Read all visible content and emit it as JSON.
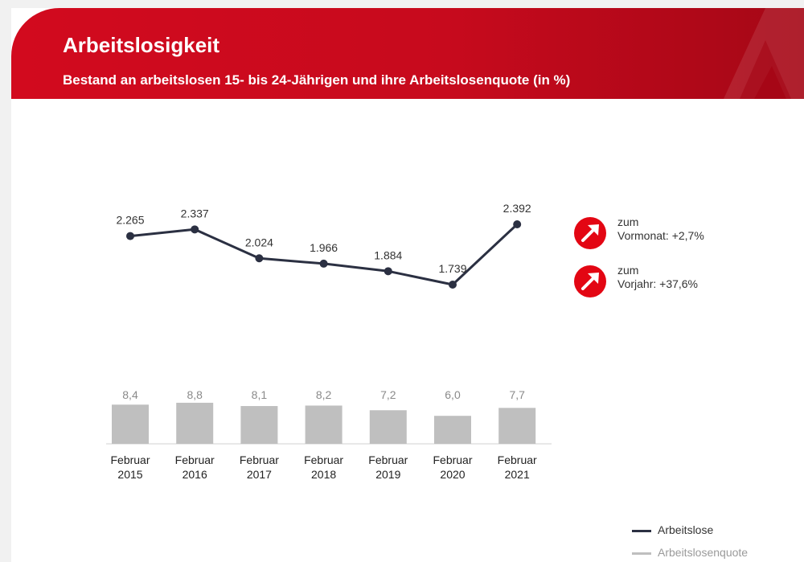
{
  "header": {
    "title": "Arbeitslosigkeit",
    "subtitle": "Bestand an arbeitslosen 15- bis 24-Jährigen und ihre Arbeitslosenquote (in %)"
  },
  "colors": {
    "brand_red": "#e30613",
    "line": "#2b3042",
    "bar": "#bfbfbf",
    "quote_label": "#8a8a8a"
  },
  "callouts": [
    {
      "icon": "arrow-up-right-icon",
      "line1": "zum",
      "line2": "Vormonat:  +2,7%"
    },
    {
      "icon": "arrow-up-right-icon",
      "line1": "zum",
      "line2": "Vorjahr:  +37,6%"
    }
  ],
  "legend": [
    {
      "label": "Arbeitslose",
      "color": "#2b3042"
    },
    {
      "label": "Arbeitslosenquote",
      "color": "#bfbfbf"
    }
  ],
  "chart_data": {
    "type": "line+bar",
    "categories": [
      [
        "Februar",
        "2015"
      ],
      [
        "Februar",
        "2016"
      ],
      [
        "Februar",
        "2017"
      ],
      [
        "Februar",
        "2018"
      ],
      [
        "Februar",
        "2019"
      ],
      [
        "Februar",
        "2020"
      ],
      [
        "Februar",
        "2021"
      ]
    ],
    "series": [
      {
        "name": "Arbeitslose",
        "type": "line",
        "values": [
          2265,
          2337,
          2024,
          1966,
          1884,
          1739,
          2392
        ],
        "labels": [
          "2.265",
          "2.337",
          "2.024",
          "1.966",
          "1.884",
          "1.739",
          "2.392"
        ]
      },
      {
        "name": "Arbeitslosenquote",
        "type": "bar",
        "values": [
          8.4,
          8.8,
          8.1,
          8.2,
          7.2,
          6.0,
          7.7
        ],
        "labels": [
          "8,4",
          "8,8",
          "8,1",
          "8,2",
          "7,2",
          "6,0",
          "7,7"
        ]
      }
    ]
  }
}
